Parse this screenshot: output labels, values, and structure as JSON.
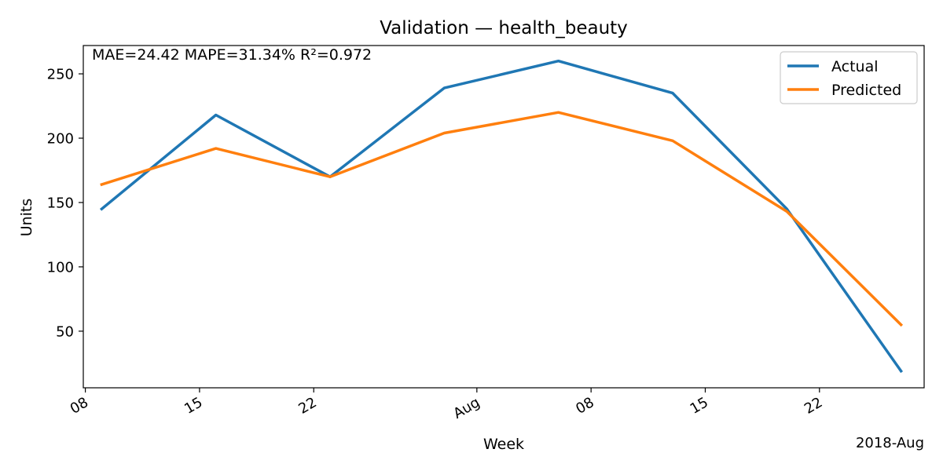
{
  "chart_data": {
    "type": "line",
    "title": "Validation — health_beauty",
    "xlabel": "Week",
    "ylabel": "Units",
    "x_offset_label": "2018-Aug",
    "metrics_text": "MAE=24.42  MAPE=31.34%  R²=0.972",
    "x": [
      "2018-07-09",
      "2018-07-16",
      "2018-07-23",
      "2018-07-30",
      "2018-08-06",
      "2018-08-13",
      "2018-08-20",
      "2018-08-27"
    ],
    "series": [
      {
        "name": "Actual",
        "color": "#1f77b4",
        "values": [
          145,
          218,
          170,
          239,
          260,
          235,
          145,
          19
        ]
      },
      {
        "name": "Predicted",
        "color": "#ff7f0e",
        "values": [
          164,
          192,
          170,
          204,
          220,
          198,
          143,
          55
        ]
      }
    ],
    "xlim": [
      "2018-07-07T21:00",
      "2018-08-28T10:00"
    ],
    "ylim": [
      6,
      272
    ],
    "yticks": [
      50,
      100,
      150,
      200,
      250
    ],
    "xticks": [
      {
        "date": "2018-07-08",
        "label": "08"
      },
      {
        "date": "2018-07-15",
        "label": "15"
      },
      {
        "date": "2018-07-22",
        "label": "22"
      },
      {
        "date": "2018-08-01",
        "label": "Aug"
      },
      {
        "date": "2018-08-08",
        "label": "08"
      },
      {
        "date": "2018-08-15",
        "label": "15"
      },
      {
        "date": "2018-08-22",
        "label": "22"
      }
    ],
    "grid": false,
    "legend_position": "top-right"
  }
}
